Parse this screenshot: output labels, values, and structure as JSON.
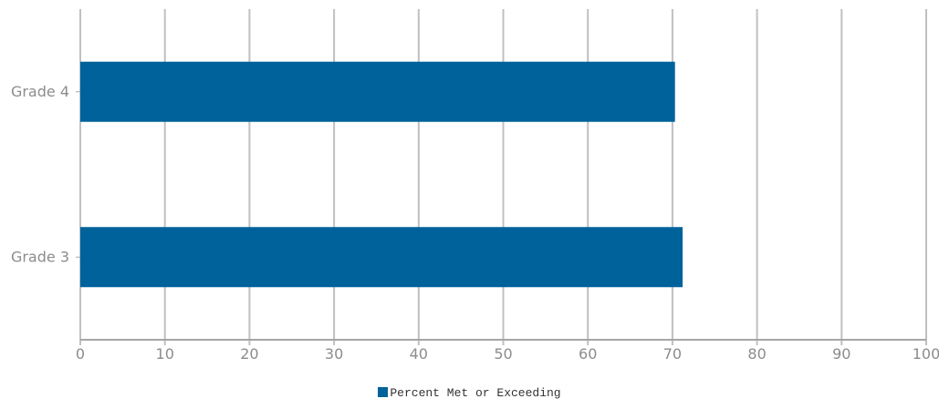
{
  "chart_data": {
    "type": "bar",
    "orientation": "horizontal",
    "categories": [
      "Grade 4",
      "Grade 3"
    ],
    "series": [
      {
        "name": "Percent Met or Exceeding",
        "values": [
          70.3,
          71.2
        ],
        "color": "#00629b"
      }
    ],
    "xlim": [
      0,
      100
    ],
    "xticks": [
      "0",
      "10",
      "20",
      "30",
      "40",
      "50",
      "60",
      "70",
      "80",
      "90",
      "100"
    ],
    "grid": true,
    "legend_position": "bottom-center",
    "colors": {
      "bar": "#00629b",
      "grid": "#c0c0c0",
      "axis": "#a6a6a6",
      "tick_text": "#8c8c8c"
    }
  },
  "legend": {
    "label": "Percent Met or Exceeding"
  }
}
